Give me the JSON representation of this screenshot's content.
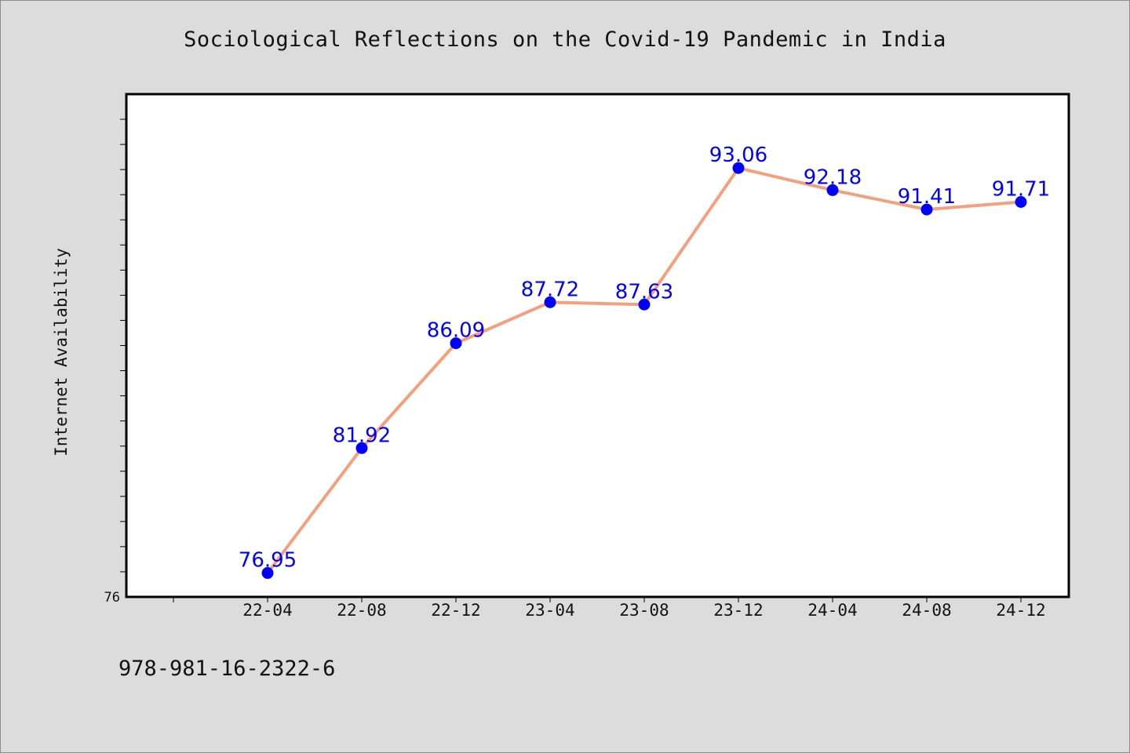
{
  "chart_data": {
    "type": "line",
    "title": "Sociological Reflections on the Covid-19 Pandemic in India",
    "ylabel": "Internet Availability",
    "xlabel": "",
    "categories": [
      "22-04",
      "22-08",
      "22-12",
      "23-04",
      "23-08",
      "23-12",
      "24-04",
      "24-08",
      "24-12"
    ],
    "series": [
      {
        "values": [
          76.95,
          81.92,
          86.09,
          87.72,
          87.63,
          93.06,
          92.18,
          91.41,
          91.71
        ]
      }
    ],
    "data_labels": [
      "76.95",
      "81.92",
      "86.09",
      "87.72",
      "87.63",
      "93.06",
      "92.18",
      "91.41",
      "91.71"
    ],
    "ylim": [
      76,
      96
    ],
    "y_tick_labels": [
      "76"
    ],
    "grid": false,
    "legend": "none",
    "colors": {
      "line": "#f4a07c",
      "marker": "#0000ff",
      "data_label": "#0000ff",
      "plot_background": "#ffffff",
      "page_background": "#dcdcdc"
    }
  },
  "footer": {
    "code": "978-981-16-2322-6"
  }
}
